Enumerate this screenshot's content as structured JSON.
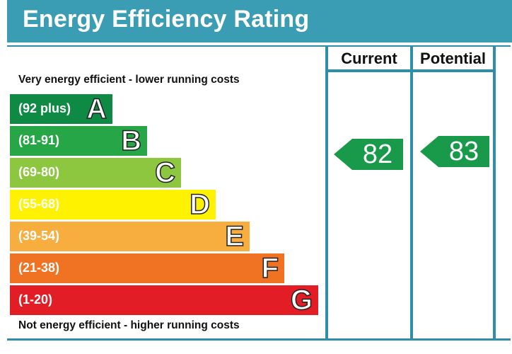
{
  "header": {
    "title": "Energy Efficiency Rating"
  },
  "columns": {
    "current": "Current",
    "potential": "Potential"
  },
  "captions": {
    "top": "Very energy efficient - lower running costs",
    "bottom": "Not energy efficient - higher running costs"
  },
  "colors": {
    "header": "#3a9db4",
    "frame": "#2f8fa6",
    "arrow": "#199a4a"
  },
  "chart_data": {
    "type": "bar",
    "bands": [
      {
        "letter": "A",
        "range": "(92 plus)",
        "color": "#0f8a44"
      },
      {
        "letter": "B",
        "range": "(81-91)",
        "color": "#26a646"
      },
      {
        "letter": "C",
        "range": "(69-80)",
        "color": "#8dc63f"
      },
      {
        "letter": "D",
        "range": "(55-68)",
        "color": "#fff200"
      },
      {
        "letter": "E",
        "range": "(39-54)",
        "color": "#f7ae3e"
      },
      {
        "letter": "F",
        "range": "(21-38)",
        "color": "#ef7322"
      },
      {
        "letter": "G",
        "range": "(1-20)",
        "color": "#e21d26"
      }
    ],
    "current": 82,
    "potential": 83
  }
}
